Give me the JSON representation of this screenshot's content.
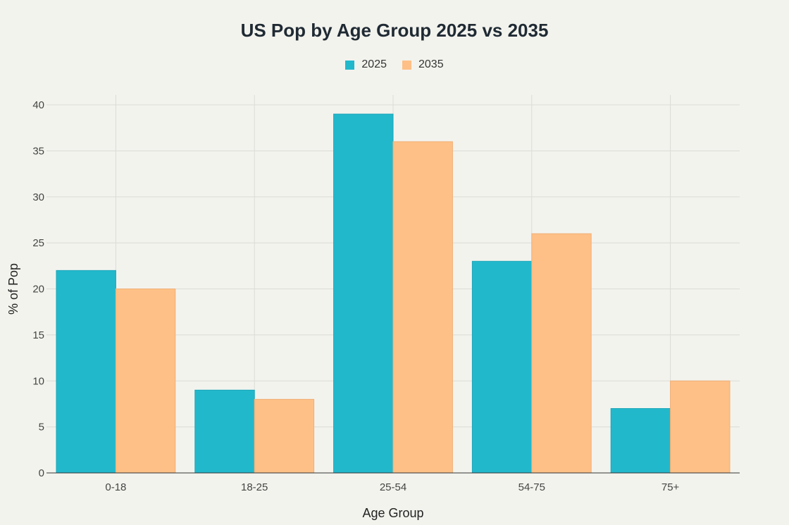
{
  "chart_data": {
    "type": "bar",
    "title": "US Pop by Age Group 2025 vs 2035",
    "xlabel": "Age Group",
    "ylabel": "% of Pop",
    "categories": [
      "0-18",
      "18-25",
      "25-54",
      "54-75",
      "75+"
    ],
    "series": [
      {
        "name": "2025",
        "values": [
          22,
          9,
          39,
          23,
          7
        ],
        "color": "#22b8cc"
      },
      {
        "name": "2035",
        "values": [
          20,
          8,
          36,
          26,
          10
        ],
        "color": "#fec086"
      }
    ],
    "ylim": [
      0,
      40
    ],
    "yticks": [
      0,
      5,
      10,
      15,
      20,
      25,
      30,
      35,
      40
    ],
    "grid": true,
    "legend_position": "top-center"
  }
}
